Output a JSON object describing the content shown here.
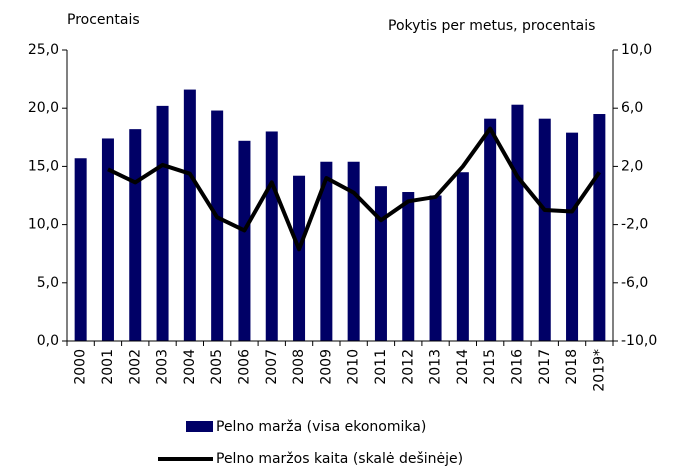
{
  "chart_data": {
    "type": "bar_line",
    "y_axis_label": "Procentais",
    "y2_axis_label": "Pokytis per metus, procentais",
    "categories": [
      "2000",
      "2001",
      "2002",
      "2003",
      "2004",
      "2005",
      "2006",
      "2007",
      "2008",
      "2009",
      "2010",
      "2011",
      "2012",
      "2013",
      "2014",
      "2015",
      "2016",
      "2017",
      "2018",
      "2019*"
    ],
    "series": [
      {
        "name": "Pelno marža (visa ekonomika)",
        "type": "bar",
        "color": "#000066",
        "values": [
          15.7,
          17.4,
          18.2,
          20.2,
          21.6,
          19.8,
          17.2,
          18.0,
          14.2,
          15.4,
          15.4,
          13.3,
          12.8,
          12.5,
          14.5,
          19.1,
          20.3,
          19.1,
          17.9,
          19.5
        ]
      },
      {
        "name": "Pelno maržos kaita (skalė dešinėje)",
        "type": "line",
        "axis": "y2",
        "color": "#000000",
        "values": [
          null,
          1.8,
          0.9,
          2.1,
          1.5,
          -1.5,
          -2.4,
          0.9,
          -3.7,
          1.2,
          0.2,
          -1.7,
          -0.4,
          -0.1,
          2.0,
          4.6,
          1.3,
          -1.0,
          -1.1,
          1.6
        ]
      }
    ],
    "ylim": [
      0,
      25
    ],
    "yticks": [
      {
        "value": 0,
        "label": "0,0"
      },
      {
        "value": 5,
        "label": "5,0"
      },
      {
        "value": 10,
        "label": "10,0"
      },
      {
        "value": 15,
        "label": "15,0"
      },
      {
        "value": 20,
        "label": "20,0"
      },
      {
        "value": 25,
        "label": "25,0"
      }
    ],
    "y2lim": [
      -10,
      10
    ],
    "y2ticks": [
      {
        "value": -10,
        "label": "-10,0"
      },
      {
        "value": -6,
        "label": "-6,0"
      },
      {
        "value": -2,
        "label": "-2,0"
      },
      {
        "value": 2,
        "label": "2,0"
      },
      {
        "value": 6,
        "label": "6,0"
      },
      {
        "value": 10,
        "label": "10,0"
      }
    ],
    "grid": false,
    "legend": "bottom"
  }
}
